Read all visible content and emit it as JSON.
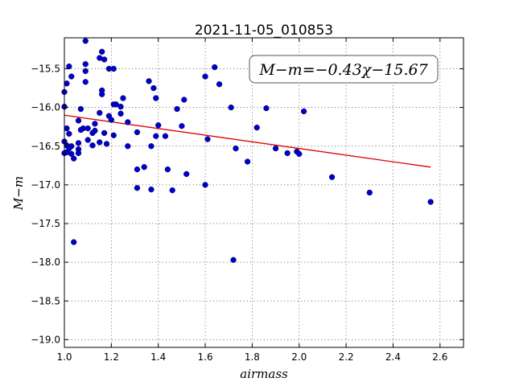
{
  "chart_data": {
    "type": "scatter",
    "title": "2021-11-05_010853",
    "xlabel": "airmass",
    "ylabel": "M−m",
    "xlim": [
      1.0,
      2.7
    ],
    "ylim": [
      -19.1,
      -15.1
    ],
    "ylim_inverted": true,
    "grid": true,
    "x_ticks": [
      1.0,
      1.2,
      1.4,
      1.6,
      1.8,
      2.0,
      2.2,
      2.4,
      2.6
    ],
    "x_tick_labels": [
      "1.0",
      "1.2",
      "1.4",
      "1.6",
      "1.8",
      "2.0",
      "2.2",
      "2.4",
      "2.6"
    ],
    "y_ticks": [
      -15.5,
      -16.0,
      -16.5,
      -17.0,
      -17.5,
      -18.0,
      -18.5,
      -19.0
    ],
    "y_tick_labels": [
      "−15.5",
      "−16.0",
      "−16.5",
      "−17.0",
      "−17.5",
      "−18.0",
      "−18.5",
      "−19.0"
    ],
    "annotation": "M−m=−0.43χ−15.67",
    "annotation_placement": "top-right",
    "point_color": "#0000cc",
    "fit_color": "#dd0000",
    "fit_line": {
      "slope": -0.43,
      "intercept": -15.67,
      "x_range": [
        1.0,
        2.56
      ]
    },
    "points": [
      [
        1.09,
        -15.14
      ],
      [
        1.16,
        -15.28
      ],
      [
        1.17,
        -15.38
      ],
      [
        1.19,
        -15.5
      ],
      [
        1.21,
        -15.5
      ],
      [
        1.02,
        -15.47
      ],
      [
        1.09,
        -15.44
      ],
      [
        1.03,
        -15.6
      ],
      [
        1.01,
        -15.69
      ],
      [
        1.09,
        -15.53
      ],
      [
        1.15,
        -15.36
      ],
      [
        1.0,
        -15.8
      ],
      [
        1.09,
        -15.67
      ],
      [
        1.16,
        -15.78
      ],
      [
        1.16,
        -15.83
      ],
      [
        1.25,
        -15.88
      ],
      [
        1.22,
        -15.96
      ],
      [
        1.21,
        -15.96
      ],
      [
        1.0,
        -15.99
      ],
      [
        1.07,
        -16.02
      ],
      [
        1.15,
        -16.07
      ],
      [
        1.24,
        -15.99
      ],
      [
        1.24,
        -16.08
      ],
      [
        1.19,
        -16.11
      ],
      [
        1.06,
        -16.17
      ],
      [
        1.13,
        -16.21
      ],
      [
        1.2,
        -16.16
      ],
      [
        1.27,
        -16.19
      ],
      [
        1.08,
        -16.27
      ],
      [
        1.07,
        -16.29
      ],
      [
        1.1,
        -16.27
      ],
      [
        1.01,
        -16.27
      ],
      [
        1.13,
        -16.3
      ],
      [
        1.02,
        -16.34
      ],
      [
        1.12,
        -16.33
      ],
      [
        1.17,
        -16.33
      ],
      [
        1.21,
        -16.36
      ],
      [
        1.1,
        -16.42
      ],
      [
        1.06,
        -16.46
      ],
      [
        1.0,
        -16.44
      ],
      [
        1.01,
        -16.49
      ],
      [
        1.03,
        -16.5
      ],
      [
        1.15,
        -16.45
      ],
      [
        1.18,
        -16.47
      ],
      [
        1.12,
        -16.49
      ],
      [
        1.27,
        -16.5
      ],
      [
        1.06,
        -16.54
      ],
      [
        1.02,
        -16.53
      ],
      [
        1.0,
        -16.59
      ],
      [
        1.06,
        -16.59
      ],
      [
        1.03,
        -16.6
      ],
      [
        1.04,
        -16.66
      ],
      [
        1.01,
        -16.58
      ],
      [
        1.36,
        -15.66
      ],
      [
        1.38,
        -15.75
      ],
      [
        1.39,
        -15.88
      ],
      [
        1.51,
        -15.9
      ],
      [
        1.6,
        -15.6
      ],
      [
        1.64,
        -15.48
      ],
      [
        1.66,
        -15.7
      ],
      [
        1.71,
        -16.0
      ],
      [
        1.86,
        -16.01
      ],
      [
        2.02,
        -16.05
      ],
      [
        1.4,
        -16.23
      ],
      [
        1.5,
        -16.24
      ],
      [
        1.31,
        -16.32
      ],
      [
        1.39,
        -16.37
      ],
      [
        1.43,
        -16.37
      ],
      [
        1.61,
        -16.41
      ],
      [
        1.37,
        -16.5
      ],
      [
        1.73,
        -16.53
      ],
      [
        1.82,
        -16.26
      ],
      [
        1.48,
        -16.02
      ],
      [
        1.9,
        -16.53
      ],
      [
        1.95,
        -16.59
      ],
      [
        1.99,
        -16.57
      ],
      [
        2.0,
        -16.6
      ],
      [
        1.78,
        -16.7
      ],
      [
        1.34,
        -16.77
      ],
      [
        1.31,
        -16.8
      ],
      [
        1.44,
        -16.8
      ],
      [
        1.52,
        -16.86
      ],
      [
        1.6,
        -17.0
      ],
      [
        1.31,
        -17.04
      ],
      [
        1.37,
        -17.06
      ],
      [
        1.46,
        -17.07
      ],
      [
        2.14,
        -16.9
      ],
      [
        2.3,
        -17.1
      ],
      [
        2.56,
        -17.22
      ],
      [
        1.04,
        -17.74
      ],
      [
        1.72,
        -17.97
      ]
    ]
  }
}
